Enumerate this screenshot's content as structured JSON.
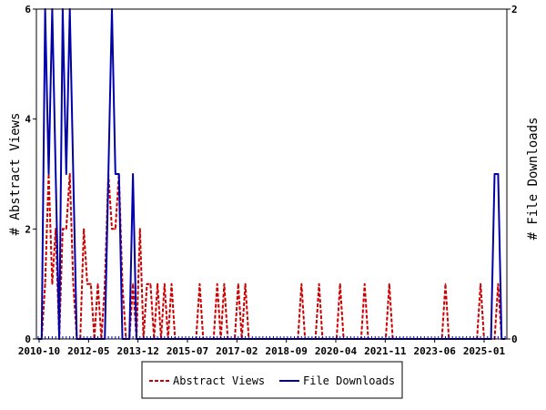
{
  "chart_data": {
    "type": "line",
    "x_tick_labels": [
      "2010-10",
      "2012-05",
      "2013-12",
      "2015-07",
      "2017-02",
      "2018-09",
      "2020-04",
      "2021-11",
      "2023-06",
      "2025-01"
    ],
    "y_left": {
      "label": "# Abstract Views",
      "ticks": [
        0,
        2,
        4,
        6
      ],
      "lim": [
        0,
        6
      ]
    },
    "y_right": {
      "label": "# File Downloads",
      "ticks": [
        0,
        2
      ],
      "lim": [
        0,
        2
      ]
    },
    "grid": false,
    "legend_position": "bottom",
    "colors": {
      "abstract": "#cc0000",
      "downloads": "#0000aa"
    },
    "series": [
      {
        "name": "Abstract Views",
        "axis": "left",
        "style": "dashed",
        "values": [
          0,
          0,
          1,
          3,
          1,
          2,
          0,
          2,
          2,
          3,
          1,
          0,
          0,
          2,
          1,
          1,
          0,
          1,
          0,
          1,
          3,
          2,
          2,
          3,
          1,
          0,
          0,
          1,
          0,
          2,
          0,
          1,
          1,
          0,
          1,
          0,
          1,
          0,
          1,
          0,
          0,
          0,
          0,
          0,
          0,
          0,
          1,
          0,
          0,
          0,
          0,
          1,
          0,
          1,
          0,
          0,
          0,
          1,
          0,
          1,
          0,
          0,
          0,
          0,
          0,
          0,
          0,
          0,
          0,
          0,
          0,
          0,
          0,
          0,
          0,
          1,
          0,
          0,
          0,
          0,
          1,
          0,
          0,
          0,
          0,
          0,
          1,
          0,
          0,
          0,
          0,
          0,
          0,
          1,
          0,
          0,
          0,
          0,
          0,
          0,
          1,
          0,
          0,
          0,
          0,
          0,
          0,
          0,
          0,
          0,
          0,
          0,
          0,
          0,
          0,
          0,
          1,
          0,
          0,
          0,
          0,
          0,
          0,
          0,
          0,
          0,
          1,
          0,
          0,
          0,
          0,
          1,
          0,
          0
        ]
      },
      {
        "name": "File Downloads",
        "axis": "right",
        "style": "solid",
        "values": [
          0,
          0,
          2,
          1,
          2,
          1,
          0,
          2,
          1,
          2,
          1,
          0,
          0,
          0,
          0,
          0,
          0,
          0,
          0,
          0,
          1,
          2,
          1,
          1,
          0,
          0,
          0,
          1,
          0,
          0,
          0,
          0,
          0,
          0,
          0,
          0,
          0,
          0,
          0,
          0,
          0,
          0,
          0,
          0,
          0,
          0,
          0,
          0,
          0,
          0,
          0,
          0,
          0,
          0,
          0,
          0,
          0,
          0,
          0,
          0,
          0,
          0,
          0,
          0,
          0,
          0,
          0,
          0,
          0,
          0,
          0,
          0,
          0,
          0,
          0,
          0,
          0,
          0,
          0,
          0,
          0,
          0,
          0,
          0,
          0,
          0,
          0,
          0,
          0,
          0,
          0,
          0,
          0,
          0,
          0,
          0,
          0,
          0,
          0,
          0,
          0,
          0,
          0,
          0,
          0,
          0,
          0,
          0,
          0,
          0,
          0,
          0,
          0,
          0,
          0,
          0,
          0,
          0,
          0,
          0,
          0,
          0,
          0,
          0,
          0,
          0,
          0,
          0,
          0,
          0,
          1,
          1,
          0,
          0
        ]
      }
    ]
  }
}
